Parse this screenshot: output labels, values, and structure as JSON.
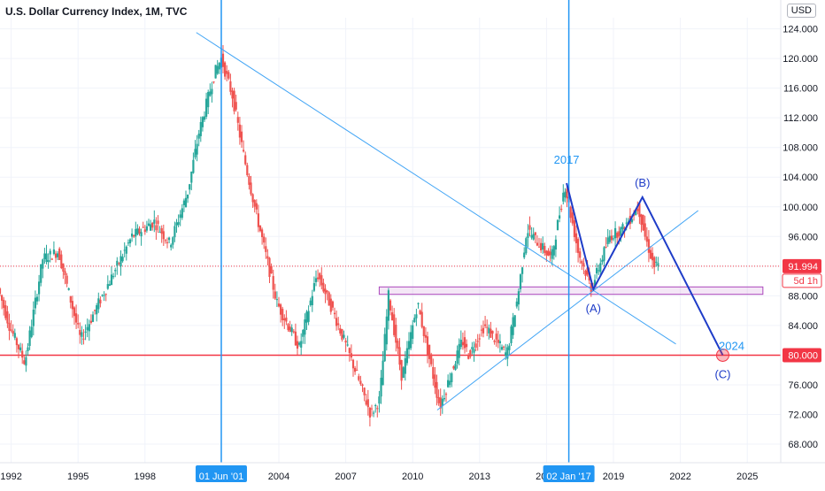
{
  "chart_data": {
    "type": "candlestick",
    "title": "U.S. Dollar Currency Index, 1M, TVC",
    "currency": "USD",
    "x_range": [
      1991.5,
      2026.5
    ],
    "y_range": [
      65.5,
      125.5
    ],
    "yticks": [
      "124.000",
      "120.000",
      "116.000",
      "112.000",
      "108.000",
      "104.000",
      "100.000",
      "96.000",
      "92.000",
      "88.000",
      "84.000",
      "80.000",
      "76.000",
      "72.000",
      "68.000"
    ],
    "xticks": [
      {
        "label": "1992",
        "x": 1992
      },
      {
        "label": "1995",
        "x": 1995
      },
      {
        "label": "1998",
        "x": 1998
      },
      {
        "label": "2004",
        "x": 2004
      },
      {
        "label": "2007",
        "x": 2007
      },
      {
        "label": "2010",
        "x": 2010
      },
      {
        "label": "2013",
        "x": 2013
      },
      {
        "label": "2016",
        "x": 2016
      },
      {
        "label": "2019",
        "x": 2019
      },
      {
        "label": "2022",
        "x": 2022
      },
      {
        "label": "2025",
        "x": 2025
      }
    ],
    "price_keypoints": [
      [
        1991.5,
        89
      ],
      [
        1992.0,
        84
      ],
      [
        1992.7,
        79
      ],
      [
        1993.5,
        93
      ],
      [
        1994.2,
        94
      ],
      [
        1995.2,
        82
      ],
      [
        1996.0,
        87
      ],
      [
        1997.5,
        96
      ],
      [
        1998.5,
        98
      ],
      [
        1999.2,
        95
      ],
      [
        2000.0,
        102
      ],
      [
        2000.5,
        110
      ],
      [
        2001.2,
        118
      ],
      [
        2001.5,
        120
      ],
      [
        2002.0,
        115
      ],
      [
        2002.5,
        107
      ],
      [
        2003.0,
        100
      ],
      [
        2004.0,
        87
      ],
      [
        2005.0,
        81
      ],
      [
        2005.8,
        91
      ],
      [
        2006.5,
        86
      ],
      [
        2007.5,
        78
      ],
      [
        2008.2,
        72
      ],
      [
        2008.6,
        74
      ],
      [
        2009.0,
        88
      ],
      [
        2009.6,
        77
      ],
      [
        2010.3,
        87
      ],
      [
        2011.3,
        73
      ],
      [
        2012.3,
        82
      ],
      [
        2012.6,
        80
      ],
      [
        2013.3,
        84
      ],
      [
        2014.3,
        80
      ],
      [
        2014.8,
        88
      ],
      [
        2015.2,
        97
      ],
      [
        2016.3,
        93
      ],
      [
        2016.9,
        103
      ],
      [
        2017.5,
        94
      ],
      [
        2018.1,
        89
      ],
      [
        2018.9,
        96
      ],
      [
        2019.5,
        97
      ],
      [
        2020.2,
        100
      ],
      [
        2020.5,
        96
      ],
      [
        2020.9,
        92
      ],
      [
        2021.1,
        92
      ]
    ],
    "last_value": "91.994",
    "countdown": "5d 1h",
    "support_level": {
      "y": 80,
      "label": "80.000"
    },
    "demand_zone": {
      "x0": 2008.5,
      "x1": 2025.7,
      "y0": 88.2,
      "y1": 89.2
    },
    "trendlines": [
      {
        "from": [
          2000.3,
          123.5
        ],
        "to": [
          2021.8,
          81.5
        ]
      },
      {
        "from": [
          2011.1,
          72.6
        ],
        "to": [
          2022.8,
          99.5
        ]
      }
    ],
    "vertical_markers": [
      {
        "x": 2001.42,
        "label": "01 Jun '01"
      },
      {
        "x": 2017.0,
        "label": "02 Jan '17"
      }
    ],
    "wave_projection": {
      "points": [
        [
          2016.9,
          103.2
        ],
        [
          2018.1,
          88.9
        ],
        [
          2020.3,
          101.3
        ],
        [
          2023.9,
          80.0
        ]
      ],
      "labels": [
        "2017",
        "(A)",
        "(B)",
        "(C)"
      ],
      "end_year_label": "2024"
    }
  }
}
